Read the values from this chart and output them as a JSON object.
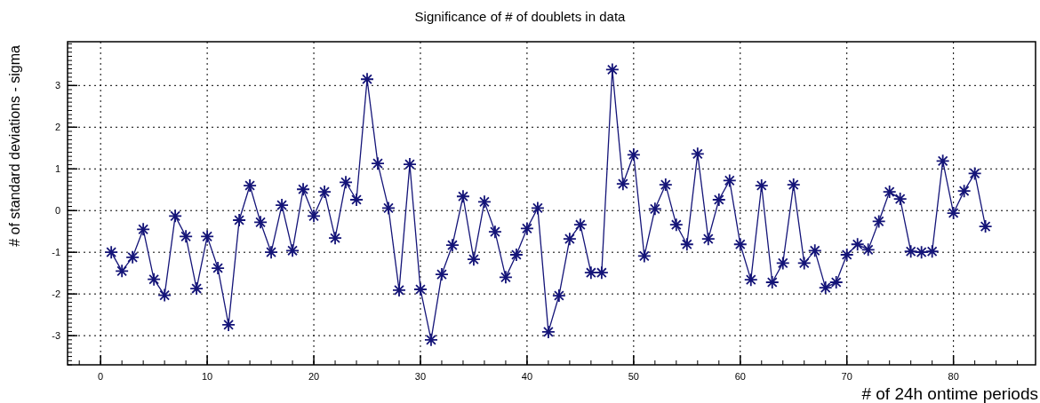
{
  "chart_data": {
    "type": "line",
    "title": "Significance of # of doublets in data",
    "xlabel": "# of 24h ontime periods",
    "ylabel": "# of standard deviations - sigma",
    "x": [
      1,
      2,
      3,
      4,
      5,
      6,
      7,
      8,
      9,
      10,
      11,
      12,
      13,
      14,
      15,
      16,
      17,
      18,
      19,
      20,
      21,
      22,
      23,
      24,
      25,
      26,
      27,
      28,
      29,
      30,
      31,
      32,
      33,
      34,
      35,
      36,
      37,
      38,
      39,
      40,
      41,
      42,
      43,
      44,
      45,
      46,
      47,
      48,
      49,
      50,
      51,
      52,
      53,
      54,
      55,
      56,
      57,
      58,
      59,
      60,
      61,
      62,
      63,
      64,
      65,
      66,
      67,
      68,
      69,
      70,
      71,
      72,
      73,
      74,
      75,
      76,
      77,
      78,
      79,
      80,
      81,
      82,
      83
    ],
    "series": [
      {
        "color": "#141478",
        "values": [
          -1.0,
          -1.45,
          -1.12,
          -0.45,
          -1.65,
          -2.03,
          -0.13,
          -0.62,
          -1.87,
          -0.62,
          -1.38,
          -2.74,
          -0.23,
          0.6,
          -0.28,
          -1.0,
          0.13,
          -0.96,
          0.51,
          -0.13,
          0.45,
          -0.66,
          0.68,
          0.26,
          3.15,
          1.13,
          0.06,
          -1.91,
          1.11,
          -1.89,
          -3.1,
          -1.53,
          -0.83,
          0.34,
          -1.17,
          0.21,
          -0.51,
          -1.6,
          -1.06,
          -0.43,
          0.06,
          -2.91,
          -2.04,
          -0.68,
          -0.34,
          -1.49,
          -1.49,
          3.38,
          0.64,
          1.34,
          -1.09,
          0.04,
          0.62,
          -0.34,
          -0.81,
          1.36,
          -0.68,
          0.26,
          0.72,
          -0.81,
          -1.66,
          0.6,
          -1.72,
          -1.26,
          0.62,
          -1.26,
          -0.96,
          -1.85,
          -1.72,
          -1.06,
          -0.81,
          -0.94,
          -0.26,
          0.45,
          0.28,
          -0.98,
          -1.0,
          -0.98,
          1.19,
          -0.06,
          0.47,
          0.89,
          -0.38
        ]
      }
    ],
    "xlim": [
      -3.1,
      87.7
    ],
    "xticks": [
      0,
      10,
      20,
      30,
      40,
      50,
      60,
      70,
      80
    ],
    "ylim": [
      -3.7,
      4.05
    ],
    "yticks": [
      -3,
      -2,
      -1,
      0,
      1,
      2,
      3
    ],
    "grid": true,
    "marker": "cross",
    "line_style": "solid"
  }
}
